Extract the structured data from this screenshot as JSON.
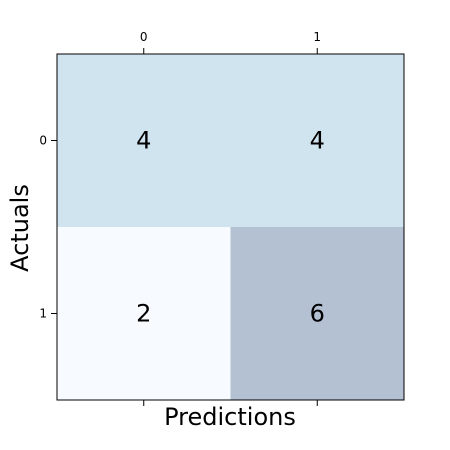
{
  "chart_data": {
    "type": "heatmap",
    "title": "",
    "xlabel": "Predictions",
    "ylabel": "Actuals",
    "x_categories": [
      "0",
      "1"
    ],
    "y_categories": [
      "0",
      "1"
    ],
    "values": [
      [
        4,
        4
      ],
      [
        2,
        6
      ]
    ],
    "x_tick_position": "top",
    "grid": false,
    "colors": {
      "low": "#f7fbff",
      "mid": "#d0e4f0",
      "high": "#b3c1d3",
      "axis": "#000000",
      "text": "#000000",
      "background": "#ffffff"
    }
  }
}
